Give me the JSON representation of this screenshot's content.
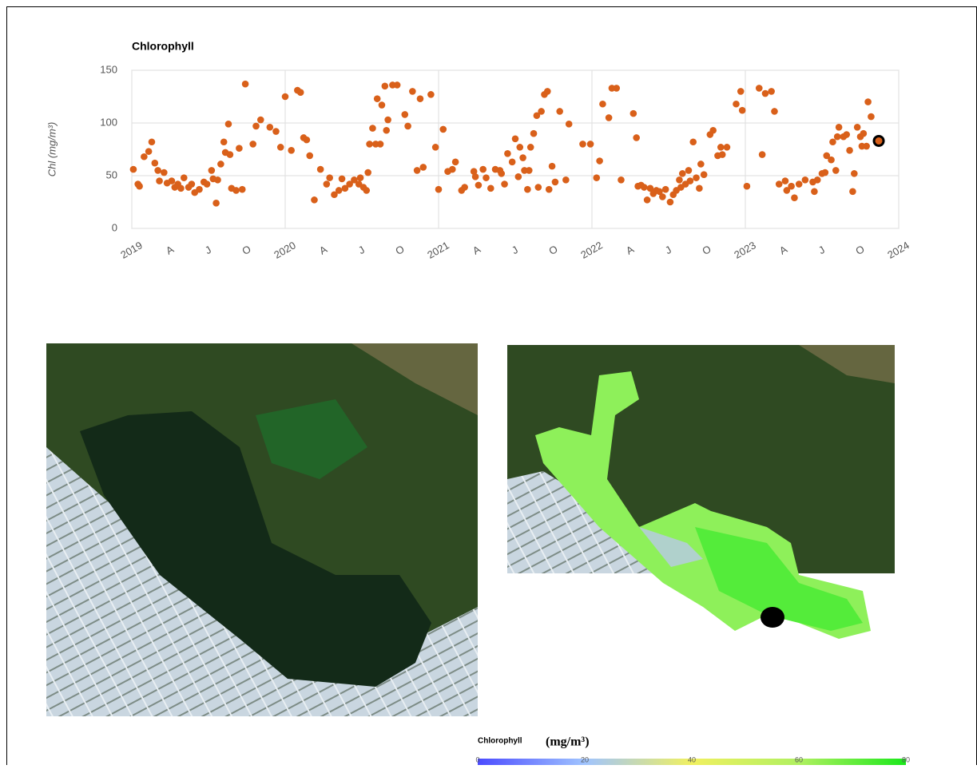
{
  "chart_data": {
    "type": "scatter",
    "title": "Chlorophyll",
    "y_label": "Chl (mg/m³)",
    "color": "#d9601a",
    "grid": true,
    "x": [
      2019.01,
      2019.04,
      2019.05,
      2019.08,
      2019.11,
      2019.13,
      2019.15,
      2019.17,
      2019.18,
      2019.21,
      2019.23,
      2019.26,
      2019.28,
      2019.3,
      2019.32,
      2019.34,
      2019.37,
      2019.39,
      2019.41,
      2019.44,
      2019.47,
      2019.49,
      2019.52,
      2019.53,
      2019.55,
      2019.56,
      2019.58,
      2019.6,
      2019.61,
      2019.63,
      2019.64,
      2019.65,
      2019.68,
      2019.7,
      2019.72,
      2019.74,
      2019.79,
      2019.81,
      2019.84,
      2019.9,
      2019.94,
      2019.97,
      2020.0,
      2020.04,
      2020.08,
      2020.1,
      2020.12,
      2020.14,
      2020.16,
      2020.19,
      2020.23,
      2020.27,
      2020.29,
      2020.32,
      2020.35,
      2020.37,
      2020.39,
      2020.42,
      2020.45,
      2020.48,
      2020.49,
      2020.51,
      2020.53,
      2020.54,
      2020.55,
      2020.57,
      2020.59,
      2020.6,
      2020.62,
      2020.63,
      2020.65,
      2020.66,
      2020.67,
      2020.7,
      2020.73,
      2020.78,
      2020.8,
      2020.83,
      2020.86,
      2020.88,
      2020.9,
      2020.95,
      2020.98,
      2021.0,
      2021.03,
      2021.06,
      2021.09,
      2021.11,
      2021.15,
      2021.17,
      2021.23,
      2021.24,
      2021.26,
      2021.29,
      2021.31,
      2021.34,
      2021.37,
      2021.4,
      2021.41,
      2021.43,
      2021.45,
      2021.48,
      2021.5,
      2021.52,
      2021.53,
      2021.55,
      2021.56,
      2021.58,
      2021.59,
      2021.6,
      2021.62,
      2021.64,
      2021.65,
      2021.67,
      2021.69,
      2021.71,
      2021.72,
      2021.74,
      2021.76,
      2021.79,
      2021.83,
      2021.85,
      2021.94,
      2021.99,
      2022.03,
      2022.05,
      2022.07,
      2022.11,
      2022.13,
      2022.16,
      2022.19,
      2022.27,
      2022.29,
      2022.3,
      2022.32,
      2022.34,
      2022.36,
      2022.38,
      2022.4,
      2022.42,
      2022.44,
      2022.46,
      2022.48,
      2022.51,
      2022.53,
      2022.55,
      2022.57,
      2022.58,
      2022.59,
      2022.61,
      2022.63,
      2022.64,
      2022.66,
      2022.68,
      2022.7,
      2022.71,
      2022.73,
      2022.77,
      2022.79,
      2022.82,
      2022.84,
      2022.85,
      2022.88,
      2022.94,
      2022.97,
      2022.98,
      2023.01,
      2023.09,
      2023.11,
      2023.13,
      2023.17,
      2023.19,
      2023.22,
      2023.26,
      2023.27,
      2023.3,
      2023.32,
      2023.35,
      2023.39,
      2023.44,
      2023.45,
      2023.47,
      2023.5,
      2023.52,
      2023.53,
      2023.56,
      2023.57,
      2023.59,
      2023.6,
      2023.61,
      2023.64,
      2023.66,
      2023.68,
      2023.7,
      2023.71,
      2023.73,
      2023.75,
      2023.76,
      2023.77,
      2023.79,
      2023.8,
      2023.82
    ],
    "values": [
      56,
      42,
      40,
      68,
      73,
      82,
      62,
      55,
      45,
      53,
      43,
      45,
      39,
      42,
      38,
      48,
      39,
      42,
      34,
      37,
      44,
      42,
      55,
      47,
      24,
      46,
      61,
      82,
      72,
      99,
      70,
      38,
      36,
      76,
      37,
      137,
      80,
      97,
      103,
      96,
      92,
      77,
      125,
      74,
      131,
      129,
      86,
      84,
      69,
      27,
      56,
      42,
      48,
      32,
      36,
      47,
      38,
      42,
      46,
      42,
      48,
      39,
      36,
      53,
      80,
      95,
      80,
      123,
      80,
      117,
      135,
      93,
      103,
      136,
      136,
      108,
      97,
      130,
      55,
      123,
      58,
      127,
      77,
      37,
      94,
      54,
      56,
      63,
      36,
      39,
      54,
      49,
      41,
      56,
      48,
      38,
      56,
      55,
      52,
      42,
      71,
      63,
      85,
      49,
      77,
      67,
      55,
      37,
      55,
      77,
      90,
      107,
      39,
      111,
      127,
      130,
      37,
      59,
      44,
      111,
      46,
      99,
      80,
      80,
      48,
      64,
      118,
      105,
      133,
      133,
      46,
      109,
      86,
      40,
      41,
      39,
      27,
      38,
      33,
      36,
      35,
      30,
      37,
      25,
      32,
      36,
      46,
      39,
      52,
      42,
      55,
      45,
      82,
      48,
      38,
      61,
      51,
      89,
      93,
      69,
      77,
      70,
      77,
      118,
      130,
      112,
      40,
      133,
      70,
      128,
      130,
      111,
      42,
      45,
      36,
      40,
      29,
      42,
      46,
      44,
      35,
      46,
      52,
      53,
      69,
      65,
      82,
      55,
      87,
      96,
      87,
      89,
      74,
      35,
      52,
      96,
      87,
      78,
      90,
      78,
      120,
      106
    ],
    "highlight": {
      "x": 2023.87,
      "y": 83
    },
    "xlim": [
      2019,
      2024
    ],
    "ylim": [
      0,
      150
    ],
    "yticks": [
      0,
      50,
      100,
      150
    ],
    "xticks": [
      2019,
      {
        "value": 2019.25,
        "label": "A"
      },
      {
        "value": 2019.5,
        "label": "J"
      },
      {
        "value": 2019.75,
        "label": "O"
      },
      2020,
      {
        "value": 2020.25,
        "label": "A"
      },
      {
        "value": 2020.5,
        "label": "J"
      },
      {
        "value": 2020.75,
        "label": "O"
      },
      2021,
      {
        "value": 2021.25,
        "label": "A"
      },
      {
        "value": 2021.5,
        "label": "J"
      },
      {
        "value": 2021.75,
        "label": "O"
      },
      2022,
      {
        "value": 2022.25,
        "label": "A"
      },
      {
        "value": 2022.5,
        "label": "J"
      },
      {
        "value": 2022.75,
        "label": "O"
      },
      2023,
      {
        "value": 2023.25,
        "label": "A"
      },
      {
        "value": 2023.5,
        "label": "J"
      },
      {
        "value": 2023.75,
        "label": "O"
      },
      2024
    ]
  },
  "colorbar": {
    "title": "Chlorophyll",
    "unit": "(mg/m³)",
    "lim": [
      0,
      80
    ],
    "ticks": [
      0,
      20,
      40,
      60,
      80
    ]
  }
}
